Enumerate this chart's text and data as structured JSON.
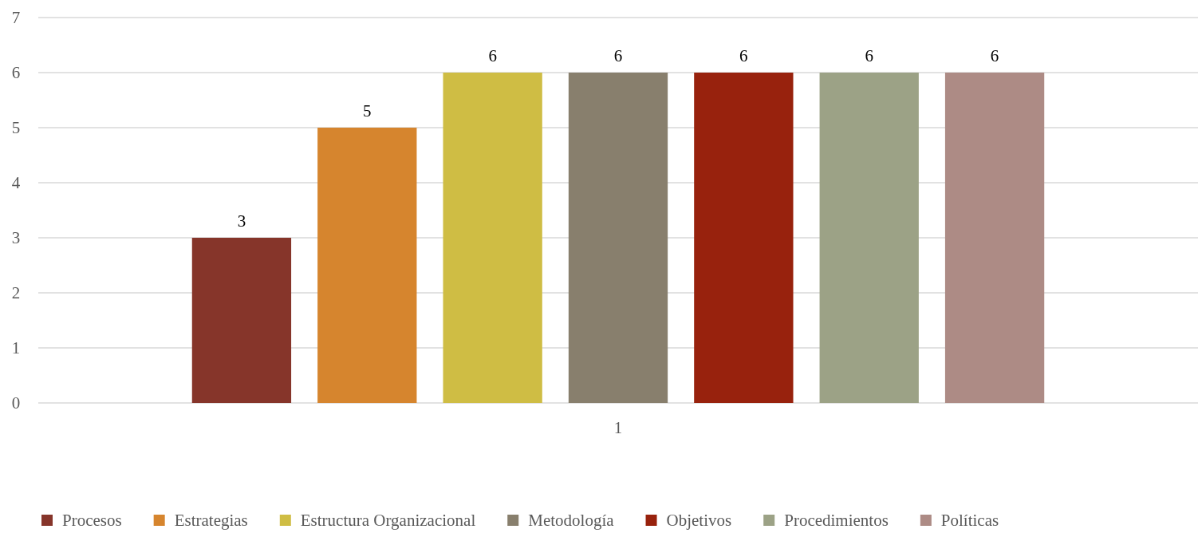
{
  "chart_data": {
    "type": "bar",
    "categories": [
      "1"
    ],
    "series": [
      {
        "name": "Procesos",
        "color": "#86352a",
        "values": [
          3
        ]
      },
      {
        "name": "Estrategias",
        "color": "#d6852e",
        "values": [
          5
        ]
      },
      {
        "name": "Estructura Organizacional",
        "color": "#cfbd44",
        "values": [
          6
        ]
      },
      {
        "name": "Metodología",
        "color": "#887f6d",
        "values": [
          6
        ]
      },
      {
        "name": "Objetivos",
        "color": "#98220d",
        "values": [
          6
        ]
      },
      {
        "name": "Procedimientos",
        "color": "#9ca286",
        "values": [
          6
        ]
      },
      {
        "name": "Políticas",
        "color": "#ad8b85",
        "values": [
          6
        ]
      }
    ],
    "ylim": [
      0,
      7
    ],
    "yticks": [
      0,
      1,
      2,
      3,
      4,
      5,
      6,
      7
    ],
    "grid": "y",
    "data_labels": true,
    "legend": "bottom"
  }
}
